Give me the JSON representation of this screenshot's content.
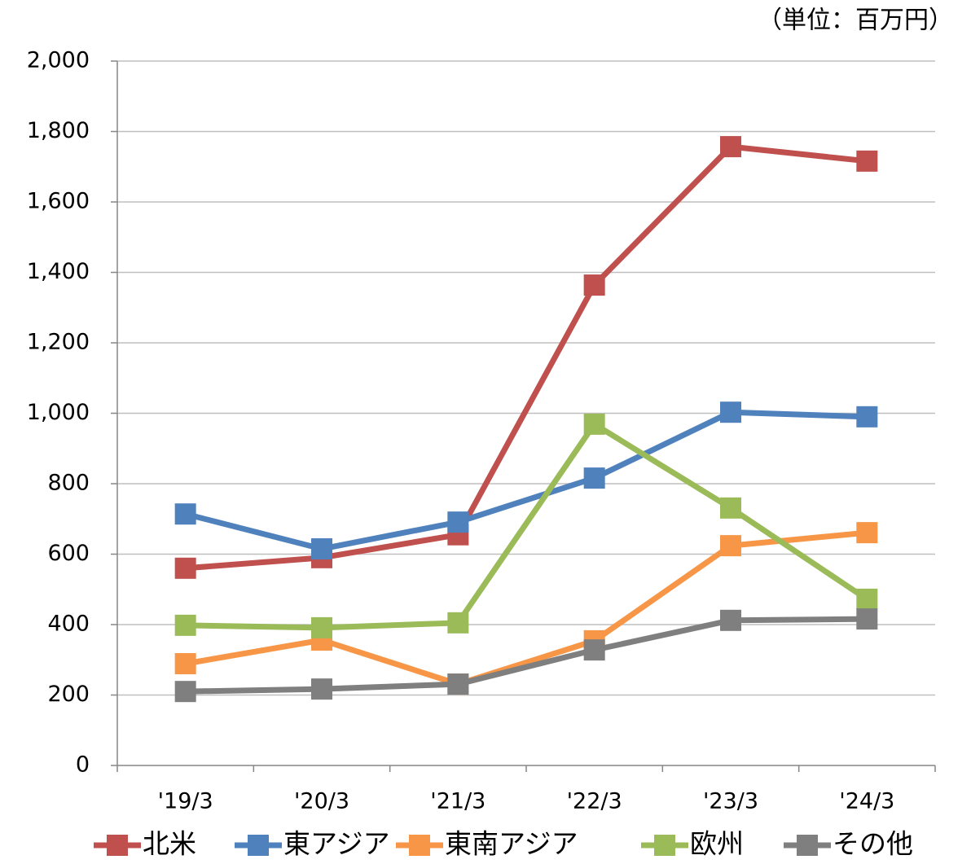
{
  "chart_data": {
    "type": "line",
    "unit_label": "（単位：百万円）",
    "categories": [
      "'19/3",
      "'20/3",
      "'21/3",
      "'22/3",
      "'23/3",
      "'24/3"
    ],
    "series": [
      {
        "name": "北米",
        "color": "#c0504d",
        "values": [
          560,
          590,
          655,
          1364,
          1757,
          1716
        ]
      },
      {
        "name": "東アジア",
        "color": "#4f81bd",
        "values": [
          714,
          615,
          691,
          816,
          1003,
          990
        ]
      },
      {
        "name": "東南アジア",
        "color": "#f79646",
        "values": [
          289,
          356,
          231,
          354,
          624,
          661
        ]
      },
      {
        "name": "欧州",
        "color": "#9bbb59",
        "values": [
          398,
          391,
          405,
          969,
          731,
          472
        ]
      },
      {
        "name": "その他",
        "color": "#7f7f7f",
        "values": [
          210,
          217,
          231,
          328,
          412,
          416
        ]
      }
    ],
    "ylim": [
      0,
      2000
    ],
    "yticks": [
      0,
      200,
      400,
      600,
      800,
      {
        "value": 1000,
        "label": "1,000"
      },
      {
        "value": 1200,
        "label": "1,200"
      },
      {
        "value": 1400,
        "label": "1,400"
      },
      {
        "value": 1600,
        "label": "1,600"
      },
      {
        "value": 1800,
        "label": "1,800"
      },
      {
        "value": 2000,
        "label": "2,000"
      }
    ],
    "grid": true,
    "legend": "bottom"
  }
}
